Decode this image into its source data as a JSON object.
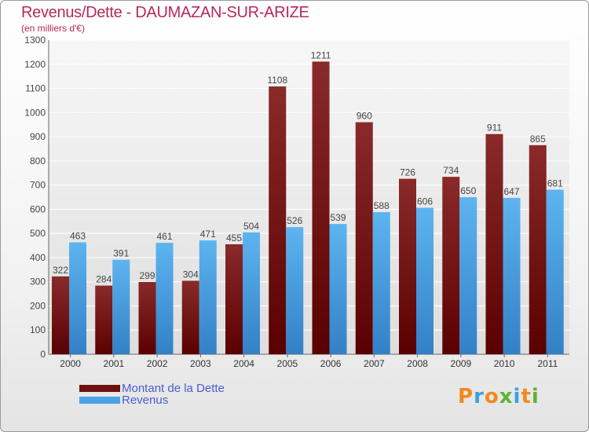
{
  "title": "Revenus/Dette - DAUMAZAN-SUR-ARIZE",
  "subtitle": "(en milliers d'€)",
  "logo_text": "Proxiti",
  "colors": {
    "debt": "#6e1010",
    "revenue": "#4aa3e8",
    "title": "#b8285a",
    "legend_text": "#4a5dd0"
  },
  "chart_data": {
    "type": "bar",
    "title": "Revenus/Dette - DAUMAZAN-SUR-ARIZE",
    "ylabel": "(en milliers d'€)",
    "categories": [
      "2000",
      "2001",
      "2002",
      "2003",
      "2004",
      "2005",
      "2006",
      "2007",
      "2008",
      "2009",
      "2010",
      "2011"
    ],
    "series": [
      {
        "name": "Montant de la Dette",
        "values": [
          322,
          284,
          299,
          304,
          455,
          1108,
          1211,
          960,
          726,
          734,
          911,
          865
        ]
      },
      {
        "name": "Revenus",
        "values": [
          463,
          391,
          461,
          471,
          504,
          526,
          539,
          588,
          606,
          650,
          647,
          681
        ]
      }
    ],
    "ylim": [
      0,
      1300
    ],
    "yticks": [
      0,
      100,
      200,
      300,
      400,
      500,
      600,
      700,
      800,
      900,
      1000,
      1100,
      1200,
      1300
    ],
    "grid": true,
    "legend_position": "bottom-left"
  }
}
